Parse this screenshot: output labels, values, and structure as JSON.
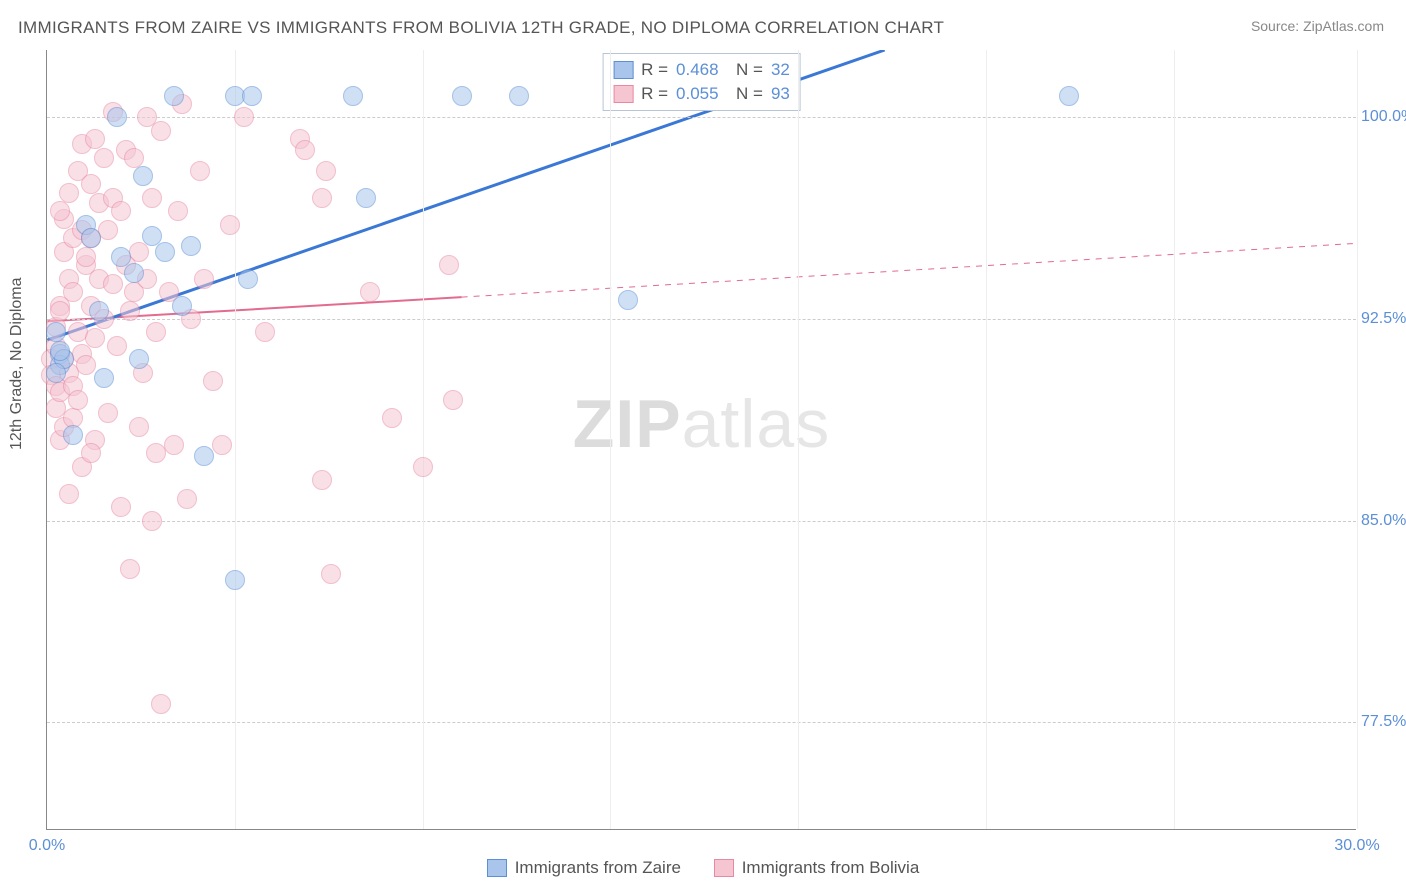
{
  "title": "IMMIGRANTS FROM ZAIRE VS IMMIGRANTS FROM BOLIVIA 12TH GRADE, NO DIPLOMA CORRELATION CHART",
  "source": "Source: ZipAtlas.com",
  "watermark_a": "ZIP",
  "watermark_b": "atlas",
  "chart": {
    "type": "scatter",
    "xlim": [
      0,
      30
    ],
    "ylim": [
      73.5,
      102.5
    ],
    "ylabel": "12th Grade, No Diploma",
    "yticks": [
      {
        "v": 100.0,
        "label": "100.0%"
      },
      {
        "v": 92.5,
        "label": "92.5%"
      },
      {
        "v": 85.0,
        "label": "85.0%"
      },
      {
        "v": 77.5,
        "label": "77.5%"
      }
    ],
    "xticks": [
      {
        "v": 0,
        "label": "0.0%"
      },
      {
        "v": 30,
        "label": "30.0%"
      }
    ],
    "xgrid": [
      0,
      4.3,
      8.6,
      12.9,
      17.2,
      21.5,
      25.8,
      30
    ],
    "grid_color": "#cccccc",
    "background_color": "#ffffff",
    "label_fontsize": 16,
    "tick_color": "#5b8fd6",
    "marker_radius": 10,
    "marker_opacity": 0.55,
    "series": {
      "zaire": {
        "label": "Immigrants from Zaire",
        "fill": "#a9c5ec",
        "stroke": "#5b8fd6",
        "line_color": "#3b78d6",
        "line_width": 3,
        "R": "0.468",
        "N": "32",
        "trend": {
          "x1": 0,
          "y1": 91.7,
          "x2": 19.2,
          "y2": 102.5,
          "dash": false,
          "extend_dash": false
        },
        "points": [
          [
            0.3,
            91.2
          ],
          [
            0.3,
            90.8
          ],
          [
            0.2,
            92.0
          ],
          [
            0.4,
            91.0
          ],
          [
            0.3,
            91.3
          ],
          [
            0.2,
            90.5
          ],
          [
            0.9,
            96.0
          ],
          [
            1.0,
            95.5
          ],
          [
            1.2,
            92.8
          ],
          [
            1.3,
            90.3
          ],
          [
            1.6,
            100.0
          ],
          [
            1.7,
            94.8
          ],
          [
            2.0,
            94.2
          ],
          [
            2.1,
            91.0
          ],
          [
            2.2,
            97.8
          ],
          [
            2.4,
            95.6
          ],
          [
            2.9,
            100.8
          ],
          [
            2.7,
            95.0
          ],
          [
            3.1,
            93.0
          ],
          [
            3.3,
            95.2
          ],
          [
            3.6,
            87.4
          ],
          [
            4.3,
            82.8
          ],
          [
            4.3,
            100.8
          ],
          [
            4.6,
            94.0
          ],
          [
            4.7,
            100.8
          ],
          [
            7.3,
            97.0
          ],
          [
            7.0,
            100.8
          ],
          [
            9.5,
            100.8
          ],
          [
            10.8,
            100.8
          ],
          [
            13.3,
            93.2
          ],
          [
            23.4,
            100.8
          ],
          [
            0.6,
            88.2
          ]
        ]
      },
      "bolivia": {
        "label": "Immigrants from Bolivia",
        "fill": "#f5c5d2",
        "stroke": "#e889a4",
        "line_color": "#e26b8f",
        "line_width": 2,
        "R": "0.055",
        "N": "93",
        "trend": {
          "x1": 0,
          "y1": 92.4,
          "x2": 9.5,
          "y2": 93.3,
          "dash": false,
          "extend_dash": true,
          "ex_x2": 30,
          "ex_y2": 95.3
        },
        "points": [
          [
            0.1,
            91.0
          ],
          [
            0.1,
            90.4
          ],
          [
            0.2,
            91.5
          ],
          [
            0.2,
            90.0
          ],
          [
            0.2,
            92.2
          ],
          [
            0.2,
            89.2
          ],
          [
            0.3,
            93.0
          ],
          [
            0.3,
            92.8
          ],
          [
            0.3,
            89.8
          ],
          [
            0.3,
            88.0
          ],
          [
            0.4,
            95.0
          ],
          [
            0.4,
            96.2
          ],
          [
            0.4,
            91.0
          ],
          [
            0.4,
            88.5
          ],
          [
            0.5,
            97.2
          ],
          [
            0.5,
            94.0
          ],
          [
            0.5,
            90.5
          ],
          [
            0.5,
            86.0
          ],
          [
            0.6,
            95.5
          ],
          [
            0.6,
            93.5
          ],
          [
            0.6,
            90.0
          ],
          [
            0.6,
            88.8
          ],
          [
            0.7,
            98.0
          ],
          [
            0.7,
            92.0
          ],
          [
            0.7,
            89.5
          ],
          [
            0.8,
            95.8
          ],
          [
            0.8,
            99.0
          ],
          [
            0.8,
            91.2
          ],
          [
            0.8,
            87.0
          ],
          [
            0.9,
            94.5
          ],
          [
            0.9,
            94.8
          ],
          [
            0.9,
            90.8
          ],
          [
            1.0,
            97.5
          ],
          [
            1.0,
            93.0
          ],
          [
            1.0,
            95.5
          ],
          [
            1.1,
            99.2
          ],
          [
            1.1,
            91.8
          ],
          [
            1.1,
            88.0
          ],
          [
            1.2,
            96.8
          ],
          [
            1.2,
            94.0
          ],
          [
            1.3,
            98.5
          ],
          [
            1.3,
            92.5
          ],
          [
            1.4,
            89.0
          ],
          [
            1.4,
            95.8
          ],
          [
            1.5,
            93.8
          ],
          [
            1.5,
            97.0
          ],
          [
            1.5,
            100.2
          ],
          [
            1.6,
            91.5
          ],
          [
            1.7,
            96.5
          ],
          [
            1.7,
            85.5
          ],
          [
            1.8,
            94.5
          ],
          [
            1.8,
            98.8
          ],
          [
            1.9,
            92.8
          ],
          [
            1.9,
            83.2
          ],
          [
            2.0,
            98.5
          ],
          [
            2.0,
            93.5
          ],
          [
            2.1,
            88.5
          ],
          [
            2.1,
            95.0
          ],
          [
            2.2,
            90.5
          ],
          [
            2.3,
            100.0
          ],
          [
            2.3,
            94.0
          ],
          [
            2.4,
            97.0
          ],
          [
            2.4,
            85.0
          ],
          [
            2.5,
            87.5
          ],
          [
            2.5,
            92.0
          ],
          [
            2.6,
            99.5
          ],
          [
            2.6,
            78.2
          ],
          [
            2.8,
            93.5
          ],
          [
            2.9,
            87.8
          ],
          [
            3.0,
            96.5
          ],
          [
            3.1,
            100.5
          ],
          [
            3.2,
            85.8
          ],
          [
            3.3,
            92.5
          ],
          [
            3.5,
            98.0
          ],
          [
            3.6,
            94.0
          ],
          [
            3.8,
            90.2
          ],
          [
            4.0,
            87.8
          ],
          [
            4.2,
            96.0
          ],
          [
            4.5,
            100.0
          ],
          [
            5.0,
            92.0
          ],
          [
            5.8,
            99.2
          ],
          [
            5.9,
            98.8
          ],
          [
            6.3,
            97.0
          ],
          [
            6.3,
            86.5
          ],
          [
            6.4,
            98.0
          ],
          [
            6.5,
            83.0
          ],
          [
            7.4,
            93.5
          ],
          [
            7.9,
            88.8
          ],
          [
            8.6,
            87.0
          ],
          [
            9.2,
            94.5
          ],
          [
            9.3,
            89.5
          ],
          [
            1.0,
            87.5
          ],
          [
            0.3,
            96.5
          ]
        ]
      }
    }
  }
}
